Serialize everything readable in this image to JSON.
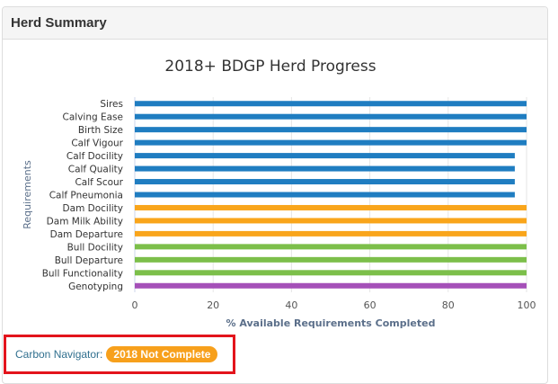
{
  "panel": {
    "title": "Herd Summary"
  },
  "chart_data": {
    "type": "bar",
    "orientation": "horizontal",
    "title": "2018+ BDGP Herd Progress",
    "xlabel": "% Available Requirements Completed",
    "ylabel": "Requirements",
    "xlim": [
      0,
      100
    ],
    "xticks": [
      0,
      20,
      40,
      60,
      80,
      100
    ],
    "grid": "vertical",
    "categories": [
      "Sires",
      "Calving Ease",
      "Birth Size",
      "Calf Vigour",
      "Calf Docility",
      "Calf Quality",
      "Calf Scour",
      "Calf Pneumonia",
      "Dam Docility",
      "Dam Milk Ability",
      "Dam Departure",
      "Bull Docility",
      "Bull Departure",
      "Bull Functionality",
      "Genotyping"
    ],
    "values": [
      100,
      100,
      100,
      100,
      97,
      97,
      97,
      97,
      100,
      100,
      100,
      100,
      100,
      100,
      100
    ],
    "colors": [
      "#1f7dc1",
      "#1f7dc1",
      "#1f7dc1",
      "#1f7dc1",
      "#1f7dc1",
      "#1f7dc1",
      "#1f7dc1",
      "#1f7dc1",
      "#f9a51b",
      "#f9a51b",
      "#f9a51b",
      "#7cbf4a",
      "#7cbf4a",
      "#7cbf4a",
      "#a550b8"
    ]
  },
  "footer": {
    "label": "Carbon Navigator:",
    "badge": "2018 Not Complete",
    "badge_color": "#f7a01c",
    "highlight_color": "#e3141c"
  }
}
